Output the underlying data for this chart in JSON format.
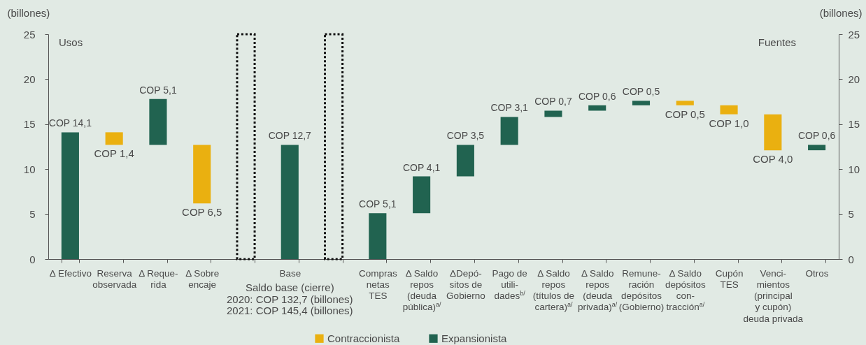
{
  "chart_data": {
    "type": "bar",
    "ylabel": "(billones)",
    "y2label": "(billones)",
    "categories": [
      "Δ Efectivo",
      "Reserva\nobservada",
      "Δ Reque-\nrida",
      "Δ Sobre\nencaje",
      null,
      "Base",
      null,
      "Compras\nnetas\nTES",
      "Δ Saldo\nrepos\n(deuda\npública)$^{a/}$",
      "ΔDepó-\nsitos de\nGobierno",
      "Pago de\nutili-\ndades$^{b/}$",
      "Δ Saldo\nrepos\n(títulos de\ncartera)$^{a/}$",
      "Δ Saldo\nrepos\n(deuda\nprivada)$^{a/}$",
      "Remune-\nración\ndepósitos\n(Gobierno)",
      "Δ Saldo\ndepósitos\ncon-\ntracción$^{a/}$",
      "Cupón\nTES",
      "Venci-\nmientos\n(principal\ny cupón)\ndeuda privada",
      "Otros"
    ],
    "series": [
      {
        "name": "Contraccionista",
        "color": "#eab010",
        "base": [
          null,
          12.7,
          null,
          6.2,
          null,
          null,
          null,
          null,
          null,
          null,
          null,
          null,
          null,
          null,
          17.1,
          16.1,
          12.1,
          null
        ],
        "values": [
          null,
          1.4,
          null,
          6.5,
          null,
          null,
          null,
          null,
          null,
          null,
          null,
          null,
          null,
          null,
          0.5,
          1.0,
          4.0,
          null
        ],
        "value_labels": [
          null,
          "COP 1,4",
          null,
          "COP 6,5",
          null,
          null,
          null,
          null,
          null,
          null,
          null,
          null,
          null,
          null,
          "COP 0,5",
          "COP 1,0",
          "COP 4,0",
          null
        ]
      },
      {
        "name": "Expansionista",
        "color": "#216350",
        "base": [
          0,
          null,
          12.7,
          null,
          null,
          0,
          null,
          0,
          5.1,
          9.2,
          12.7,
          15.8,
          16.5,
          17.1,
          null,
          null,
          null,
          12.1
        ],
        "values": [
          14.1,
          null,
          5.1,
          null,
          null,
          12.7,
          null,
          5.1,
          4.1,
          3.5,
          3.1,
          0.7,
          0.6,
          0.5,
          null,
          null,
          null,
          0.6
        ],
        "value_labels": [
          "COP 14,1",
          null,
          "COP 5,1",
          null,
          null,
          "COP 12,7",
          null,
          "COP 5,1",
          "COP 4,1",
          "COP 3,5",
          "COP 3,1",
          "COP 0,7",
          "COP 0,6",
          "COP 0,5",
          null,
          null,
          null,
          "COP 0,6"
        ]
      },
      {
        "color": "#111111",
        "line_style": "dotted",
        "values": [
          null,
          null,
          null,
          null,
          25,
          null,
          25,
          null,
          null,
          null,
          null,
          null,
          null,
          null,
          null,
          null,
          null,
          null
        ]
      }
    ],
    "ylim": [
      0,
      25
    ],
    "yticks": [
      0,
      5,
      10,
      15,
      20,
      25
    ],
    "y2lim": [
      0,
      25
    ],
    "y2ticks": [
      0,
      5,
      10,
      15,
      20,
      25
    ],
    "grid": false,
    "legend": "bottom",
    "annotations": [
      "Usos",
      "Fuentes",
      "Saldo base (cierre)\n2020: COP 132,7 (billones)\n2021: COP 145,4 (billones)"
    ]
  }
}
